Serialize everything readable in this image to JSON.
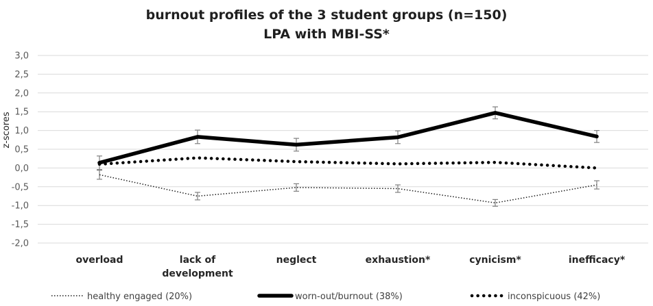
{
  "chart_data": {
    "type": "line",
    "title": [
      "burnout profiles of the 3 student groups (n=150)",
      "LPA with MBI-SS*"
    ],
    "ylabel": "z-scores",
    "xlabel": "",
    "ylim": [
      -2.0,
      3.0
    ],
    "yticks": [
      "3,0",
      "2,5",
      "2,0",
      "1,5",
      "1,0",
      "0,5",
      "0,0",
      "-0,5",
      "-1,0",
      "-1,5",
      "-2,0"
    ],
    "categories": [
      [
        "overload"
      ],
      [
        "lack of",
        "development"
      ],
      [
        "neglect"
      ],
      [
        "exhaustion*"
      ],
      [
        "cynicism*"
      ],
      [
        "inefficacy*"
      ]
    ],
    "grid": true,
    "legend_position": "bottom",
    "series": [
      {
        "name": "healthy engaged (20%)",
        "style": "dotted-thin",
        "color": "#1a1a1a",
        "values": [
          -0.18,
          -0.75,
          -0.52,
          -0.55,
          -0.93,
          -0.45
        ],
        "errors": [
          0.12,
          0.1,
          0.1,
          0.1,
          0.09,
          0.11
        ]
      },
      {
        "name": "worn-out/burnout (38%)",
        "style": "solid-thick",
        "color": "#000000",
        "values": [
          0.14,
          0.83,
          0.62,
          0.82,
          1.47,
          0.84
        ],
        "errors": [
          0.18,
          0.18,
          0.17,
          0.17,
          0.16,
          0.16
        ]
      },
      {
        "name": "inconspicuous (42%)",
        "style": "dotted-thick",
        "color": "#000000",
        "values": [
          0.1,
          0.27,
          0.17,
          0.11,
          0.15,
          0.0
        ],
        "errors": [
          0.0,
          0.0,
          0.0,
          0.0,
          0.0,
          0.0
        ]
      }
    ]
  }
}
